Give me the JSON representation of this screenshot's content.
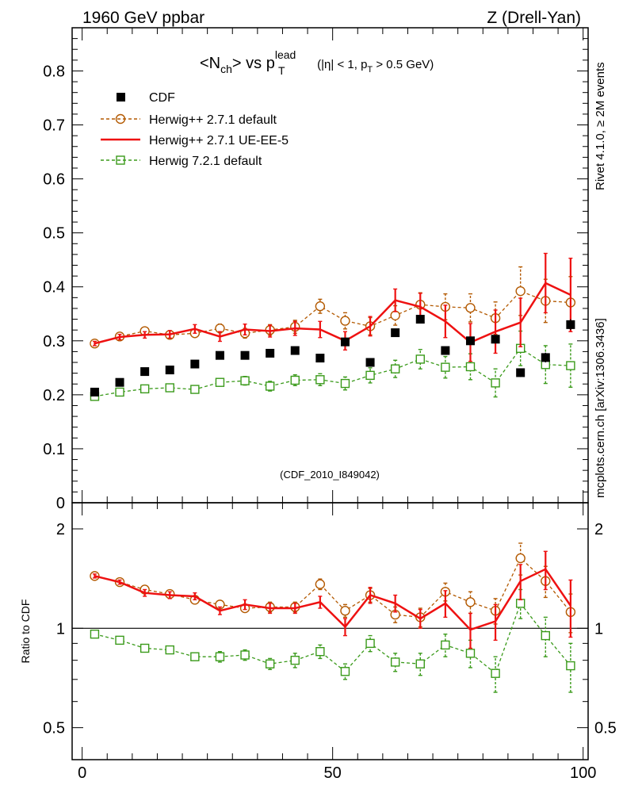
{
  "header": {
    "left_label": "1960 GeV ppbar",
    "right_label": "Z (Drell-Yan)"
  },
  "side_labels": {
    "rivet": "Rivet 4.1.0, ≥ 2M events",
    "mcplots": "mcplots.cern.ch [arXiv:1306.3436]"
  },
  "chart_data": {
    "type": "scatter",
    "title_parts": {
      "n_open": "<N",
      "n_sub": "ch",
      "vs": "> vs p",
      "pt_sub": "T",
      "pt_sup": "lead",
      "cut_a": " (|η| < 1, p",
      "cut_sub": "T",
      "cut_b": " > 0.5 GeV)"
    },
    "analysis_tag": "(CDF_2010_I849042)",
    "xlim": [
      -2,
      101
    ],
    "ylim": [
      0,
      0.88
    ],
    "ratio_ylabel": "Ratio to CDF",
    "ratio_ylim": [
      0.4,
      2.4
    ],
    "x_ticks": [
      0,
      50,
      100
    ],
    "y_ticks": [
      "0",
      "0.1",
      "0.2",
      "0.3",
      "0.4",
      "0.5",
      "0.6",
      "0.7",
      "0.8"
    ],
    "ratio_ticks": [
      "0.5",
      "1",
      "2"
    ],
    "x": [
      2.5,
      7.5,
      12.5,
      17.5,
      22.5,
      27.5,
      32.5,
      37.5,
      42.5,
      47.5,
      52.5,
      57.5,
      62.5,
      67.5,
      72.5,
      77.5,
      82.5,
      87.5,
      92.5,
      97.5
    ],
    "series": [
      {
        "name": "CDF",
        "color": "#000000",
        "values": [
          0.205,
          0.223,
          0.243,
          0.246,
          0.257,
          0.273,
          0.273,
          0.277,
          0.282,
          0.268,
          0.298,
          0.26,
          0.315,
          0.34,
          0.282,
          0.3,
          0.303,
          0.241,
          0.269,
          0.33
        ],
        "errors": [
          0.003,
          0.003,
          0.003,
          0.003,
          0.003,
          0.003,
          0.003,
          0.003,
          0.003,
          0.004,
          0.004,
          0.004,
          0.005,
          0.005,
          0.006,
          0.006,
          0.007,
          0.008,
          0.009,
          0.01
        ]
      },
      {
        "name": "Herwig++ 2.7.1 default",
        "color": "#b35900",
        "values": [
          0.295,
          0.308,
          0.318,
          0.311,
          0.314,
          0.323,
          0.314,
          0.32,
          0.326,
          0.364,
          0.337,
          0.327,
          0.347,
          0.367,
          0.363,
          0.361,
          0.342,
          0.392,
          0.374,
          0.371
        ],
        "errors": [
          0.003,
          0.004,
          0.005,
          0.006,
          0.007,
          0.008,
          0.009,
          0.01,
          0.012,
          0.013,
          0.015,
          0.016,
          0.018,
          0.022,
          0.024,
          0.026,
          0.03,
          0.045,
          0.04,
          0.048
        ],
        "ratio": [
          1.44,
          1.38,
          1.31,
          1.27,
          1.22,
          1.18,
          1.15,
          1.16,
          1.16,
          1.36,
          1.13,
          1.26,
          1.1,
          1.08,
          1.29,
          1.2,
          1.13,
          1.63,
          1.39,
          1.12
        ],
        "ratio_errors": [
          0.02,
          0.02,
          0.02,
          0.03,
          0.03,
          0.03,
          0.03,
          0.04,
          0.04,
          0.05,
          0.05,
          0.06,
          0.06,
          0.07,
          0.08,
          0.09,
          0.1,
          0.18,
          0.15,
          0.15
        ]
      },
      {
        "name": "Herwig++ 2.7.1 UE-EE-5",
        "color": "#ee1111",
        "values": [
          0.295,
          0.307,
          0.311,
          0.312,
          0.322,
          0.308,
          0.321,
          0.318,
          0.323,
          0.321,
          0.3,
          0.327,
          0.375,
          0.363,
          0.336,
          0.297,
          0.317,
          0.334,
          0.407,
          0.385
        ],
        "errors": [
          0.004,
          0.005,
          0.006,
          0.007,
          0.008,
          0.009,
          0.01,
          0.011,
          0.013,
          0.015,
          0.017,
          0.018,
          0.021,
          0.025,
          0.03,
          0.035,
          0.04,
          0.045,
          0.055,
          0.068
        ],
        "ratio": [
          1.44,
          1.38,
          1.28,
          1.26,
          1.25,
          1.13,
          1.18,
          1.15,
          1.15,
          1.2,
          1.01,
          1.26,
          1.19,
          1.07,
          1.19,
          0.99,
          1.05,
          1.39,
          1.51,
          1.17
        ],
        "ratio_errors": [
          0.02,
          0.02,
          0.03,
          0.03,
          0.03,
          0.03,
          0.04,
          0.04,
          0.04,
          0.05,
          0.06,
          0.07,
          0.07,
          0.07,
          0.11,
          0.12,
          0.13,
          0.17,
          0.2,
          0.23
        ]
      },
      {
        "name": "Herwig 7.2.1 default",
        "color": "#3a9a1a",
        "values": [
          0.197,
          0.205,
          0.211,
          0.213,
          0.21,
          0.223,
          0.226,
          0.216,
          0.227,
          0.228,
          0.221,
          0.236,
          0.248,
          0.266,
          0.251,
          0.252,
          0.222,
          0.286,
          0.256,
          0.254
        ],
        "errors": [
          0.003,
          0.004,
          0.005,
          0.006,
          0.006,
          0.007,
          0.008,
          0.009,
          0.01,
          0.011,
          0.012,
          0.014,
          0.016,
          0.018,
          0.02,
          0.024,
          0.026,
          0.032,
          0.035,
          0.04
        ],
        "ratio": [
          0.96,
          0.92,
          0.87,
          0.86,
          0.82,
          0.82,
          0.83,
          0.78,
          0.8,
          0.85,
          0.74,
          0.9,
          0.79,
          0.78,
          0.89,
          0.84,
          0.73,
          1.19,
          0.95,
          0.77
        ],
        "ratio_errors": [
          0.01,
          0.02,
          0.02,
          0.02,
          0.02,
          0.03,
          0.03,
          0.03,
          0.04,
          0.04,
          0.04,
          0.05,
          0.05,
          0.06,
          0.07,
          0.08,
          0.09,
          0.12,
          0.13,
          0.13
        ]
      }
    ]
  }
}
